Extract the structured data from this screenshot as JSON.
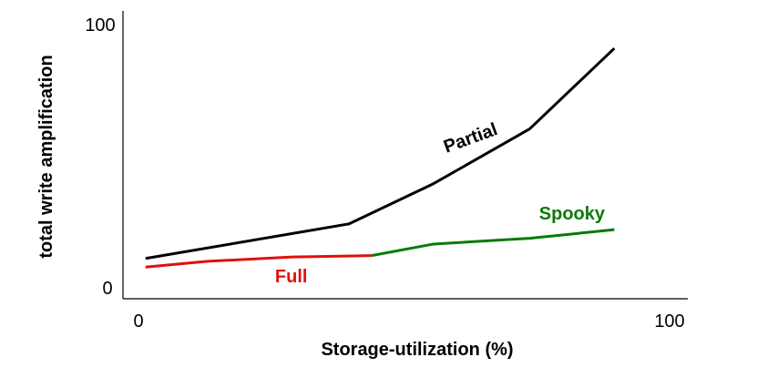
{
  "chart_data": {
    "type": "line",
    "xlabel": "Storage-utilization (%)",
    "ylabel": "total write amplification",
    "xlim": [
      0,
      100
    ],
    "ylim": [
      0,
      100
    ],
    "x_ticks": [
      "0",
      "100"
    ],
    "y_ticks": [
      "0",
      "100"
    ],
    "grid": false,
    "series": [
      {
        "name": "Partial",
        "color": "#000000",
        "points": [
          [
            4,
            14
          ],
          [
            40,
            26
          ],
          [
            55,
            40
          ],
          [
            72,
            59
          ],
          [
            87,
            87
          ]
        ]
      },
      {
        "name": "Full",
        "color": "#e0100f",
        "points": [
          [
            4,
            11
          ],
          [
            15,
            13
          ],
          [
            30,
            14.5
          ],
          [
            44,
            15
          ]
        ]
      },
      {
        "name": "Spooky",
        "color": "#0a7a0a",
        "points": [
          [
            44,
            15
          ],
          [
            55,
            19
          ],
          [
            72,
            21
          ],
          [
            87,
            24
          ]
        ]
      }
    ]
  }
}
